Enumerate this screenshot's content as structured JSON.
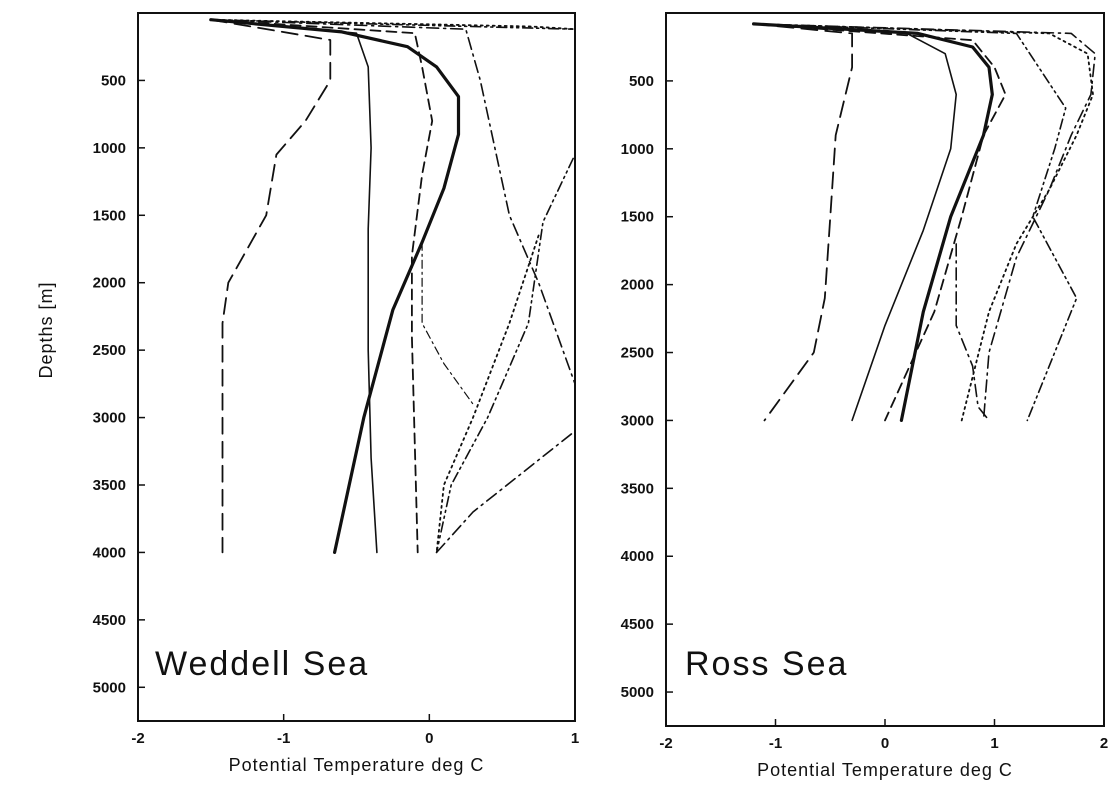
{
  "chart_data": [
    {
      "type": "line",
      "title": "Weddell Sea",
      "xlabel": "Potential Temperature deg C",
      "ylabel": "Depths [m]",
      "xlim": [
        -2,
        1
      ],
      "ylim": [
        0,
        5250
      ],
      "y_inverted": true,
      "x_ticks": [
        "-2",
        "-1",
        "0",
        "1"
      ],
      "y_ticks": [
        "500",
        "1000",
        "1500",
        "2000",
        "2500",
        "3000",
        "3500",
        "4000",
        "4500",
        "5000"
      ],
      "series": [
        {
          "style": "thick-solid",
          "x": [
            -1.5,
            -0.6,
            -0.15,
            0.05,
            0.2,
            0.2,
            0.1,
            -0.05,
            -0.25,
            -0.45,
            -0.65
          ],
          "y": [
            50,
            140,
            250,
            400,
            620,
            900,
            1300,
            1700,
            2200,
            3000,
            4000
          ]
        },
        {
          "style": "thin-solid",
          "x": [
            -1.5,
            -0.5,
            -0.42,
            -0.4,
            -0.42,
            -0.42,
            -0.4,
            -0.36
          ],
          "y": [
            50,
            150,
            400,
            1000,
            1600,
            2500,
            3300,
            4000
          ]
        },
        {
          "style": "long-dash",
          "x": [
            -1.5,
            -0.68,
            -0.68,
            -0.85,
            -1.05,
            -1.12,
            -1.38,
            -1.42,
            -1.42,
            -1.42
          ],
          "y": [
            50,
            200,
            500,
            800,
            1050,
            1500,
            2000,
            2300,
            3000,
            4000
          ]
        },
        {
          "style": "medium-dash",
          "x": [
            -1.5,
            -0.1,
            -0.05,
            0.02,
            -0.05,
            -0.12,
            -0.12,
            -0.1,
            -0.08
          ],
          "y": [
            50,
            150,
            400,
            800,
            1200,
            1800,
            2400,
            3200,
            4000
          ]
        },
        {
          "style": "dash-dot",
          "x": [
            -1.5,
            0.25,
            0.35,
            0.55,
            0.75,
            1.0,
            1.0
          ],
          "y": [
            50,
            120,
            500,
            1500,
            2000,
            2750,
            2760
          ]
        },
        {
          "style": "dotted",
          "x": [
            -1.5,
            0.7,
            1.0,
            1.0
          ],
          "y": [
            50,
            100,
            120,
            850
          ]
        },
        {
          "style": "dotted",
          "x": [
            0.75,
            0.55,
            0.3,
            0.1,
            0.05
          ],
          "y": [
            1650,
            2300,
            3000,
            3500,
            4000
          ]
        },
        {
          "style": "dash-dot-dot",
          "x": [
            -1.5,
            1.0,
            1.0,
            0.78,
            0.68,
            0.4,
            0.15,
            0.05
          ],
          "y": [
            50,
            120,
            1050,
            1550,
            2300,
            3000,
            3500,
            4000
          ]
        },
        {
          "style": "dash-dot",
          "x": [
            0.05,
            0.3,
            1.0
          ],
          "y": [
            4000,
            3700,
            3100
          ]
        },
        {
          "style": "dash-dot-thin",
          "x": [
            -0.05,
            -0.05,
            0.1,
            0.3
          ],
          "y": [
            1700,
            2300,
            2600,
            2900
          ]
        }
      ]
    },
    {
      "type": "line",
      "title": "Ross Sea",
      "xlabel": "Potential Temperature deg C",
      "ylabel": "",
      "xlim": [
        -2,
        2
      ],
      "ylim": [
        0,
        5250
      ],
      "y_inverted": true,
      "x_ticks": [
        "-2",
        "-1",
        "0",
        "1",
        "2"
      ],
      "y_ticks": [
        "500",
        "1000",
        "1500",
        "2000",
        "2500",
        "3000",
        "3500",
        "4000",
        "4500",
        "5000"
      ],
      "series": [
        {
          "style": "thick-solid",
          "x": [
            -1.2,
            0.3,
            0.8,
            0.95,
            0.98,
            0.9,
            0.6,
            0.35,
            0.15
          ],
          "y": [
            80,
            150,
            250,
            400,
            600,
            900,
            1500,
            2200,
            3000
          ]
        },
        {
          "style": "thin-solid",
          "x": [
            -1.2,
            0.2,
            0.55,
            0.65,
            0.6,
            0.35,
            0.0,
            -0.3
          ],
          "y": [
            80,
            150,
            300,
            600,
            1000,
            1600,
            2300,
            3000
          ]
        },
        {
          "style": "long-dash",
          "x": [
            -1.2,
            -0.3,
            -0.3,
            -0.45,
            -0.5,
            -0.55,
            -0.65,
            -1.1
          ],
          "y": [
            80,
            150,
            400,
            900,
            1500,
            2100,
            2500,
            3000
          ]
        },
        {
          "style": "medium-dash",
          "x": [
            -1.2,
            0.8,
            1.0,
            1.1,
            0.9,
            0.7,
            0.45,
            0.0
          ],
          "y": [
            80,
            200,
            400,
            600,
            900,
            1500,
            2200,
            3000
          ]
        },
        {
          "style": "dotted",
          "x": [
            -1.2,
            1.5,
            1.85,
            1.9,
            1.75,
            1.5,
            1.2,
            0.95,
            0.7
          ],
          "y": [
            80,
            150,
            300,
            600,
            900,
            1300,
            1700,
            2200,
            3000
          ]
        },
        {
          "style": "dash-dot",
          "x": [
            -1.2,
            1.7,
            1.92,
            1.88,
            1.7,
            1.5,
            1.2,
            0.95,
            0.9
          ],
          "y": [
            80,
            150,
            300,
            600,
            900,
            1300,
            1800,
            2500,
            3000
          ]
        },
        {
          "style": "dash-dot-dot",
          "x": [
            -1.2,
            1.2,
            1.65,
            1.55,
            1.35,
            1.75,
            1.3
          ],
          "y": [
            80,
            150,
            700,
            1000,
            1500,
            2100,
            3000
          ]
        },
        {
          "style": "dash-dot",
          "x": [
            0.65,
            0.65,
            0.8,
            0.85,
            0.95
          ],
          "y": [
            1700,
            2300,
            2600,
            2900,
            3000
          ]
        }
      ]
    }
  ]
}
